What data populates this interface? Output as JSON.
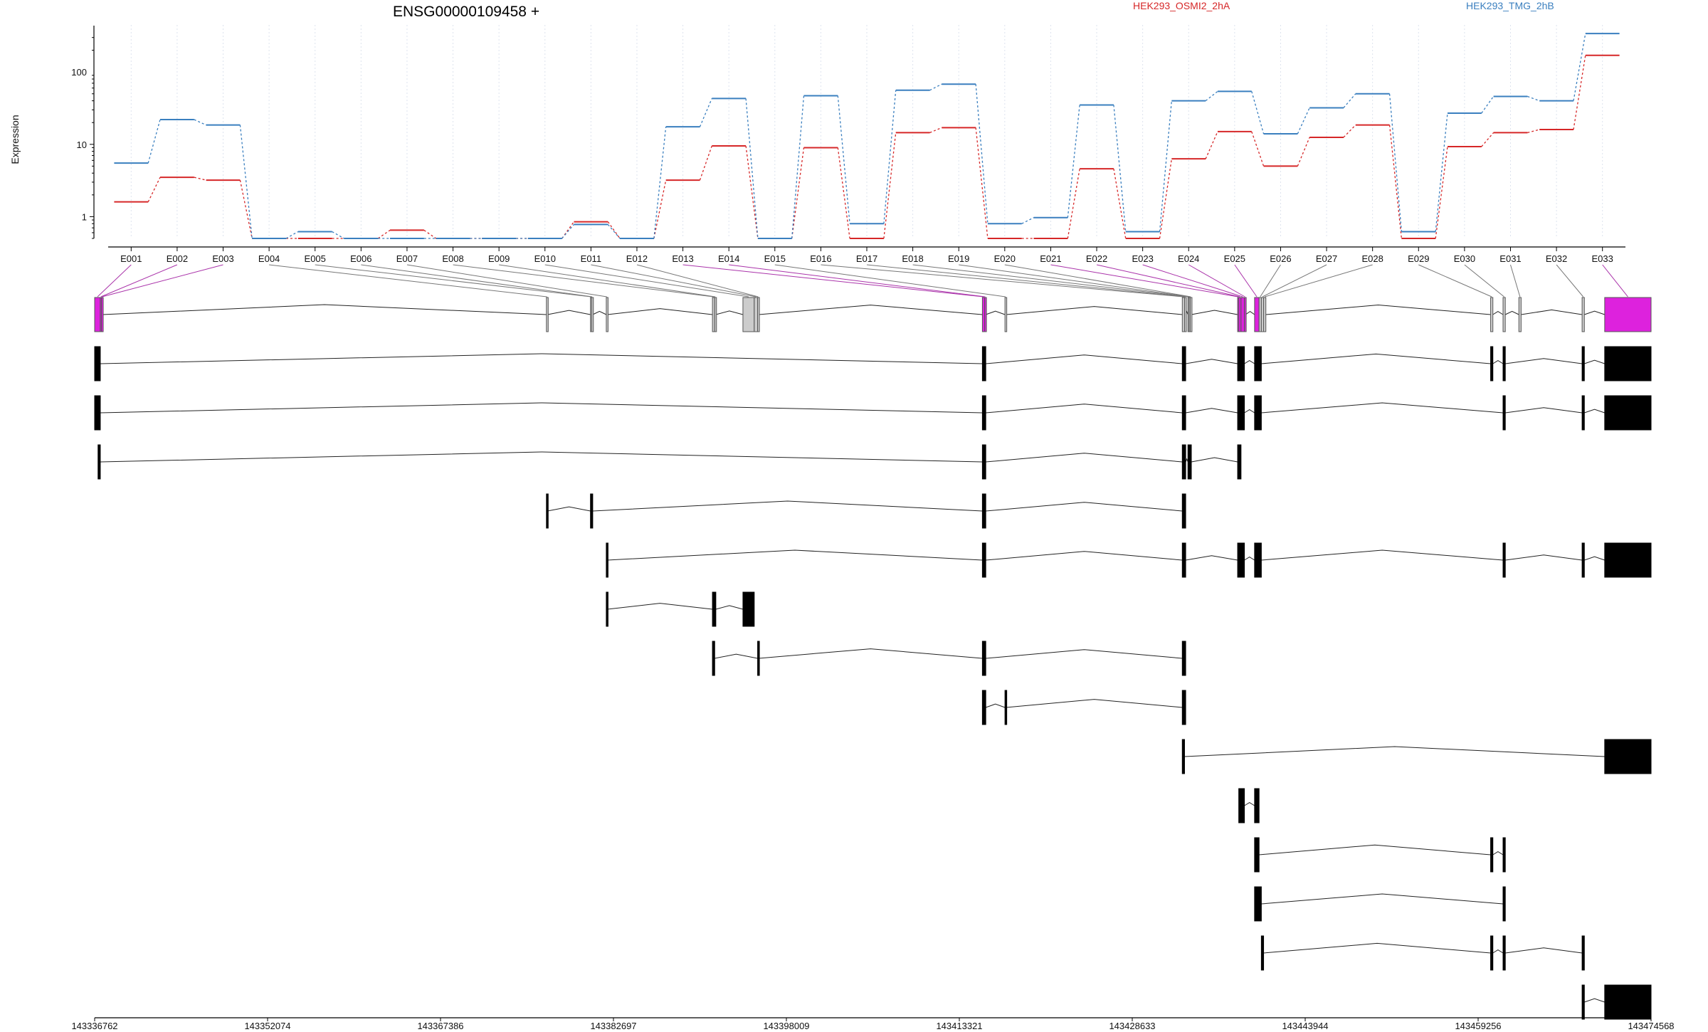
{
  "chart_data": {
    "type": "line",
    "title": "ENSG00000109458 +",
    "ylabel": "Expression",
    "yscale": "log",
    "ylim": [
      0.5,
      400
    ],
    "yticks": [
      1,
      10,
      100
    ],
    "ytick_labels": [
      "1",
      "10",
      "100"
    ],
    "legend_placement": "top-right",
    "categories": [
      "E001",
      "E002",
      "E003",
      "E004",
      "E005",
      "E006",
      "E007",
      "E008",
      "E009",
      "E010",
      "E011",
      "E012",
      "E013",
      "E014",
      "E015",
      "E016",
      "E017",
      "E018",
      "E019",
      "E020",
      "E021",
      "E022",
      "E023",
      "E024",
      "E025",
      "E026",
      "E027",
      "E028",
      "E029",
      "E030",
      "E031",
      "E032",
      "E033"
    ],
    "series": [
      {
        "name": "HEK293_OSMI2_2hA",
        "color": "#d62728",
        "values": [
          1.6,
          3.5,
          3.2,
          0.5,
          0.5,
          0.5,
          0.65,
          0.5,
          0.5,
          0.5,
          0.85,
          0.5,
          3.2,
          9.5,
          0.5,
          9.0,
          0.5,
          14.5,
          17,
          0.5,
          0.5,
          4.6,
          0.5,
          6.3,
          15,
          5,
          12.5,
          18.5,
          0.5,
          9.3,
          14.5,
          16,
          170
        ]
      },
      {
        "name": "HEK293_TMG_2hB",
        "color": "#3a7fbf",
        "values": [
          5.5,
          22,
          18.5,
          0.5,
          0.62,
          0.5,
          0.5,
          0.5,
          0.5,
          0.5,
          0.78,
          0.5,
          17.5,
          43,
          0.5,
          47,
          0.8,
          56,
          68,
          0.8,
          0.97,
          35,
          0.62,
          40,
          54,
          14,
          32,
          50,
          0.62,
          27,
          46,
          40,
          340
        ]
      }
    ],
    "genomic_axis": {
      "min": 143336762,
      "max": 143474568,
      "tick_labels": [
        "143336762",
        "143352074",
        "143367386",
        "143382697",
        "143398009",
        "143413321",
        "143428633",
        "143443944",
        "143459256",
        "143474568"
      ]
    },
    "exons": [
      {
        "id": "E001",
        "start": 143336762,
        "end": 143337262,
        "color": "#dd22dd"
      },
      {
        "id": "E002",
        "start": 143337262,
        "end": 143337362,
        "color": "#dd22dd"
      },
      {
        "id": "E003",
        "start": 143337362,
        "end": 143337462,
        "color": "#dd22dd"
      },
      {
        "id": "E004",
        "start": 143376762,
        "end": 143376862,
        "color": "#cccccc"
      },
      {
        "id": "E005",
        "start": 143380662,
        "end": 143380762,
        "color": "#cccccc"
      },
      {
        "id": "E006",
        "start": 143380762,
        "end": 143380862,
        "color": "#cccccc"
      },
      {
        "id": "E007",
        "start": 143382062,
        "end": 143382162,
        "color": "#cccccc"
      },
      {
        "id": "E008",
        "start": 143391462,
        "end": 143391662,
        "color": "#cccccc"
      },
      {
        "id": "E009",
        "start": 143391662,
        "end": 143391762,
        "color": "#cccccc"
      },
      {
        "id": "E010",
        "start": 143394162,
        "end": 143395162,
        "color": "#cccccc"
      },
      {
        "id": "E011",
        "start": 143395162,
        "end": 143395462,
        "color": "#cccccc"
      },
      {
        "id": "E012",
        "start": 143395462,
        "end": 143395562,
        "color": "#cccccc"
      },
      {
        "id": "E013",
        "start": 143415362,
        "end": 143415562,
        "color": "#dd22dd"
      },
      {
        "id": "E014",
        "start": 143415562,
        "end": 143415662,
        "color": "#dd22dd"
      },
      {
        "id": "E015",
        "start": 143417362,
        "end": 143417462,
        "color": "#cccccc"
      },
      {
        "id": "E016",
        "start": 143433062,
        "end": 143433262,
        "color": "#cccccc"
      },
      {
        "id": "E017",
        "start": 143433262,
        "end": 143433362,
        "color": "#cccccc"
      },
      {
        "id": "E018",
        "start": 143433562,
        "end": 143433662,
        "color": "#cccccc"
      },
      {
        "id": "E019",
        "start": 143433662,
        "end": 143433762,
        "color": "#cccccc"
      },
      {
        "id": "E020",
        "start": 143433762,
        "end": 143433862,
        "color": "#cccccc"
      },
      {
        "id": "E021",
        "start": 143437962,
        "end": 143438062,
        "color": "#dd22dd"
      },
      {
        "id": "E022",
        "start": 143438062,
        "end": 143438262,
        "color": "#dd22dd"
      },
      {
        "id": "E023",
        "start": 143438262,
        "end": 143438562,
        "color": "#dd22dd"
      },
      {
        "id": "E024",
        "start": 143438562,
        "end": 143438662,
        "color": "#dd22dd"
      },
      {
        "id": "E025",
        "start": 143439462,
        "end": 143439862,
        "color": "#dd22dd"
      },
      {
        "id": "E026",
        "start": 143439862,
        "end": 143440062,
        "color": "#cccccc"
      },
      {
        "id": "E027",
        "start": 143440062,
        "end": 143440262,
        "color": "#cccccc"
      },
      {
        "id": "E028",
        "start": 143440262,
        "end": 143440462,
        "color": "#cccccc"
      },
      {
        "id": "E029",
        "start": 143460362,
        "end": 143460562,
        "color": "#cccccc"
      },
      {
        "id": "E030",
        "start": 143461462,
        "end": 143461662,
        "color": "#cccccc"
      },
      {
        "id": "E031",
        "start": 143462862,
        "end": 143463062,
        "color": "#cccccc"
      },
      {
        "id": "E032",
        "start": 143468462,
        "end": 143468662,
        "color": "#cccccc"
      },
      {
        "id": "E033",
        "start": 143470462,
        "end": 143474568,
        "color": "#dd22dd"
      }
    ],
    "transcripts": [
      [
        [
          143336762,
          143337262
        ],
        [
          143415362,
          143415662
        ],
        [
          143433062,
          143433362
        ],
        [
          143437962,
          143438562
        ],
        [
          143439462,
          143440062
        ],
        [
          143460362,
          143460562
        ],
        [
          143461462,
          143461662
        ],
        [
          143468462,
          143468662
        ],
        [
          143470462,
          143474568
        ]
      ],
      [
        [
          143336762,
          143337262
        ],
        [
          143415362,
          143415662
        ],
        [
          143433062,
          143433362
        ],
        [
          143437962,
          143438562
        ],
        [
          143439462,
          143440062
        ],
        [
          143461462,
          143461662
        ],
        [
          143468462,
          143468662
        ],
        [
          143470462,
          143474568
        ]
      ],
      [
        [
          143337062,
          143337262
        ],
        [
          143415362,
          143415662
        ],
        [
          143433062,
          143433362
        ],
        [
          143433562,
          143433862
        ],
        [
          143437962,
          143438262
        ]
      ],
      [
        [
          143376762,
          143376862
        ],
        [
          143380662,
          143380862
        ],
        [
          143415362,
          143415662
        ],
        [
          143433062,
          143433362
        ]
      ],
      [
        [
          143382062,
          143382162
        ],
        [
          143415362,
          143415662
        ],
        [
          143433062,
          143433362
        ],
        [
          143437962,
          143438562
        ],
        [
          143439462,
          143440062
        ],
        [
          143461462,
          143461662
        ],
        [
          143468462,
          143468662
        ],
        [
          143470462,
          143474568
        ]
      ],
      [
        [
          143382062,
          143382162
        ],
        [
          143391462,
          143391762
        ],
        [
          143394162,
          143395162
        ]
      ],
      [
        [
          143391462,
          143391662
        ],
        [
          143395462,
          143395562
        ],
        [
          143415362,
          143415662
        ],
        [
          143433062,
          143433362
        ]
      ],
      [
        [
          143415362,
          143415662
        ],
        [
          143417362,
          143417462
        ],
        [
          143433062,
          143433362
        ]
      ],
      [
        [
          143433062,
          143433262
        ],
        [
          143470462,
          143474568
        ]
      ],
      [
        [
          143438062,
          143438562
        ],
        [
          143439462,
          143439862
        ]
      ],
      [
        [
          143439462,
          143439862
        ],
        [
          143460362,
          143460562
        ],
        [
          143461462,
          143461662
        ]
      ],
      [
        [
          143439462,
          143440062
        ],
        [
          143461462,
          143461662
        ]
      ],
      [
        [
          143440062,
          143440262
        ],
        [
          143460362,
          143460562
        ],
        [
          143461462,
          143461662
        ],
        [
          143468462,
          143468662
        ]
      ],
      [
        [
          143468462,
          143468662
        ],
        [
          143470462,
          143474568
        ]
      ]
    ]
  }
}
